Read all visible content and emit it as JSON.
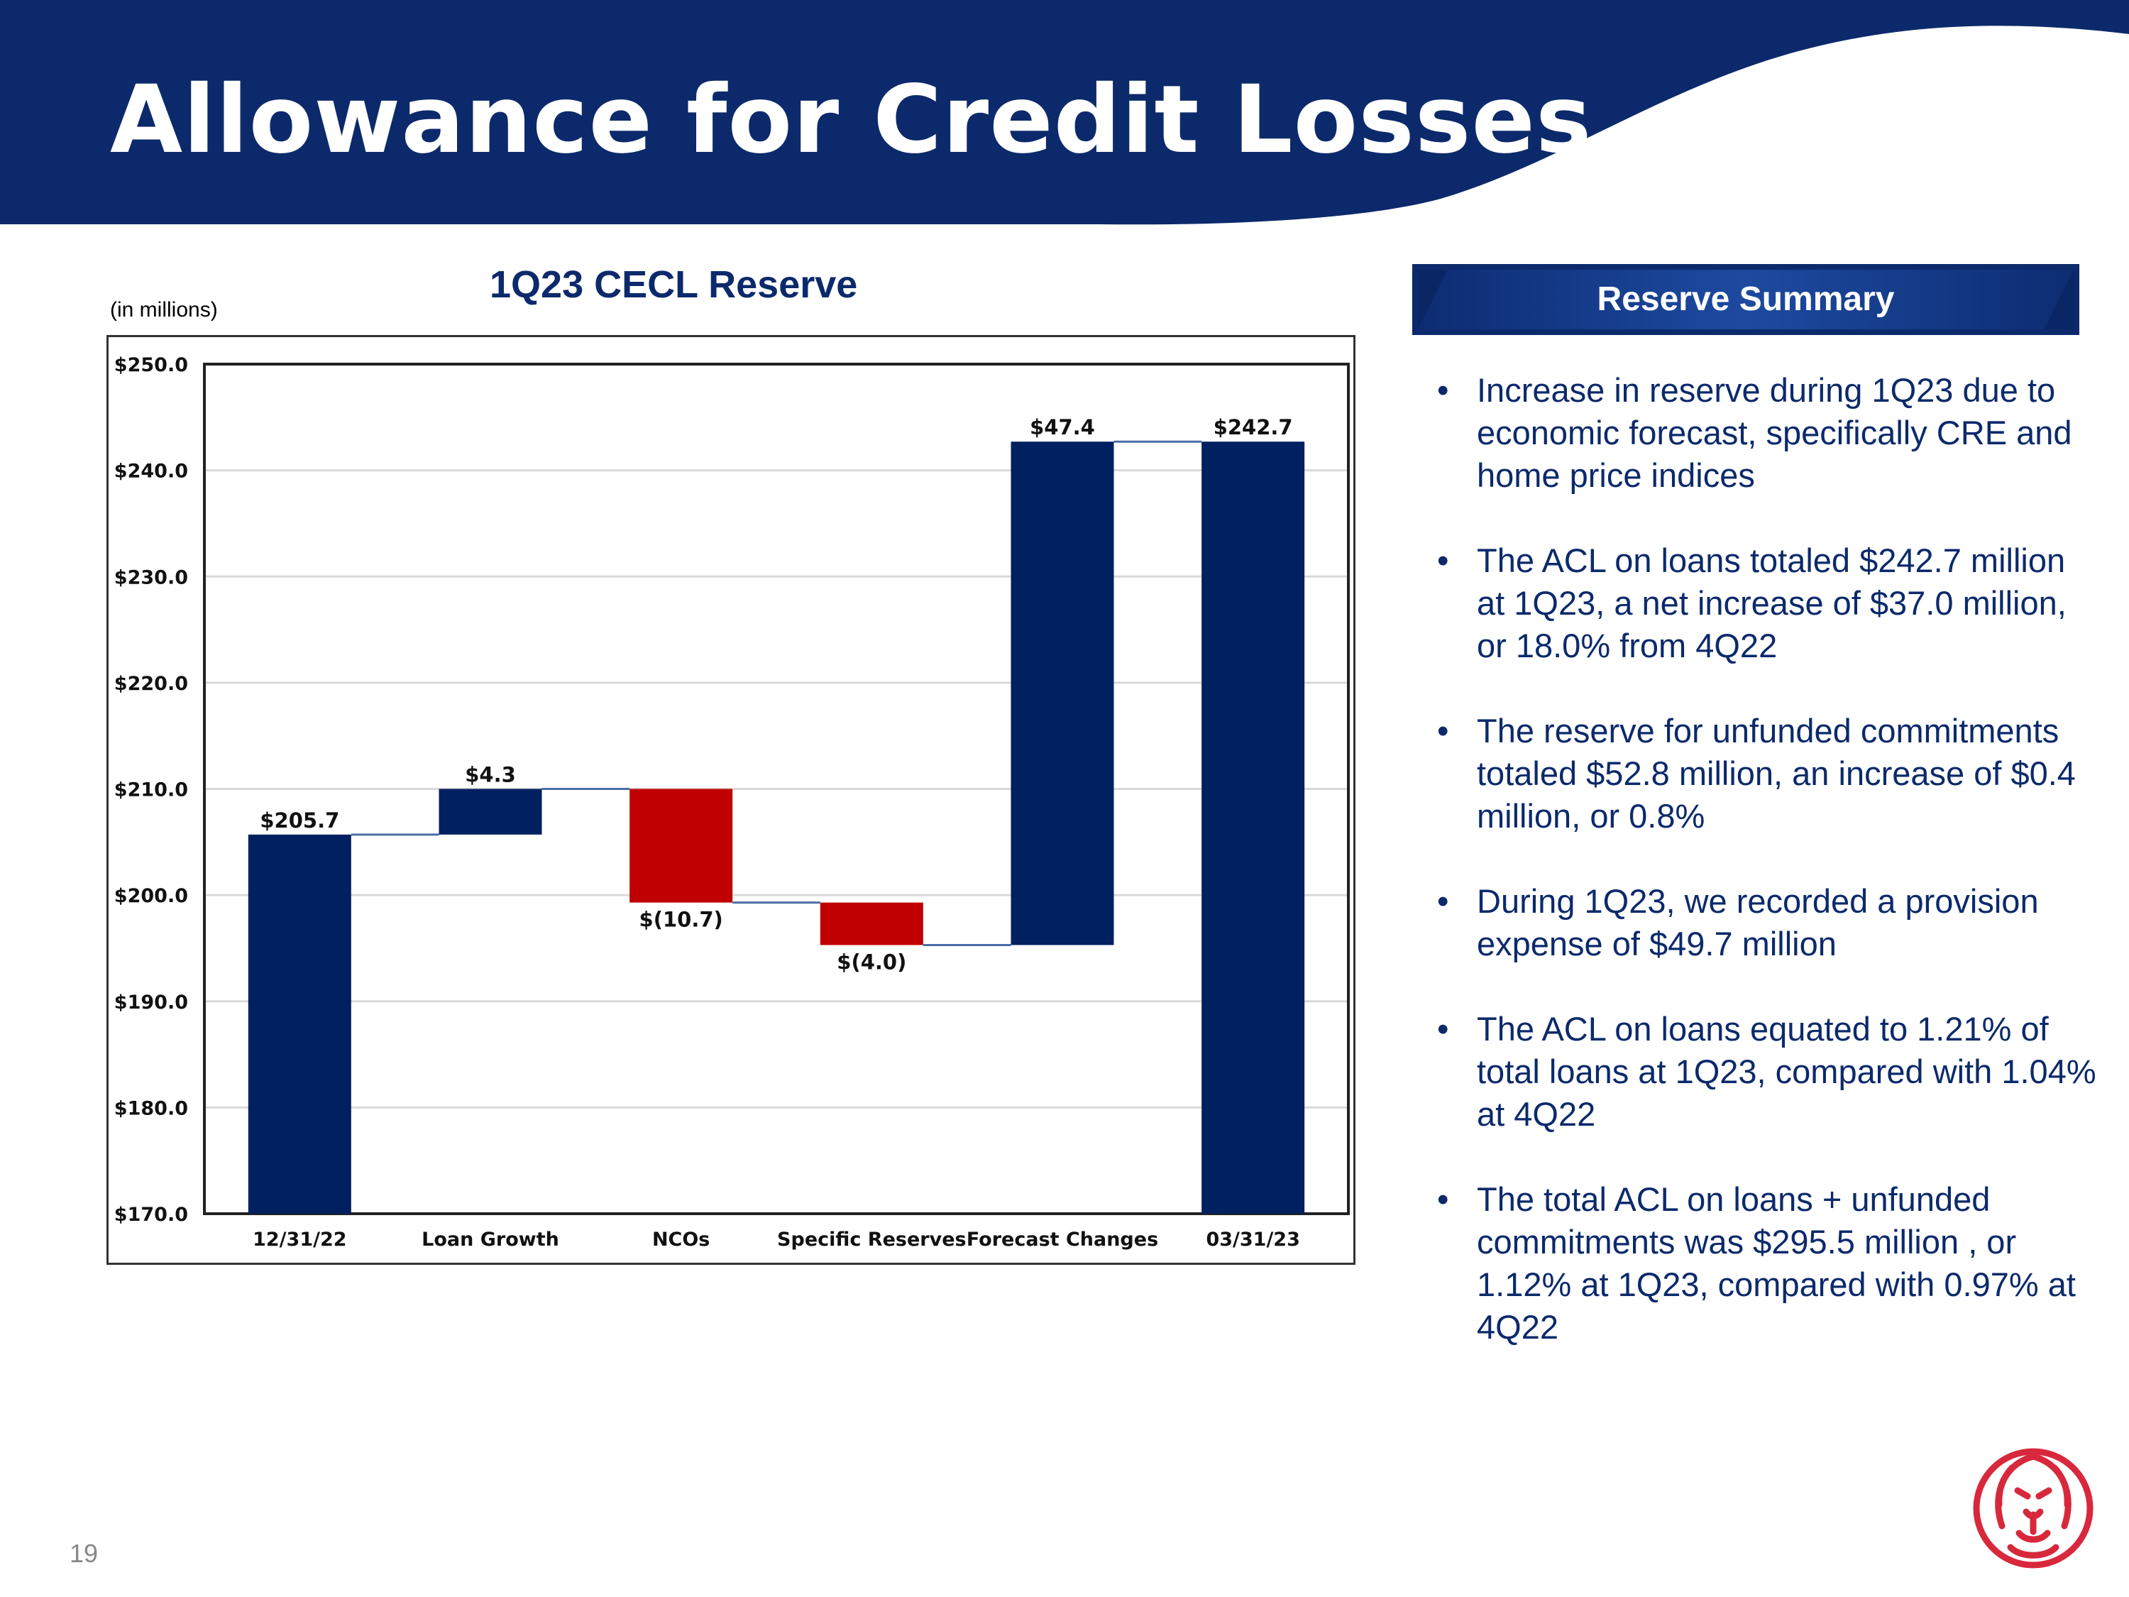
{
  "title": "Allowance for Credit Losses",
  "chart_heading": "1Q23 CECL Reserve",
  "units_note": "(in millions)",
  "summary": {
    "heading": "Reserve Summary",
    "bullets": [
      "Increase in reserve during 1Q23 due to economic forecast, specifically CRE and home price indices",
      "The ACL on loans totaled $242.7 million at 1Q23, a net increase of $37.0 million, or 18.0% from 4Q22",
      "The reserve for unfunded commitments totaled $52.8 million, an increase of $0.4 million, or 0.8%",
      "During 1Q23, we recorded a provision expense of $49.7 million",
      "The ACL on loans equated to 1.21% of total loans at 1Q23, compared with 1.04% at 4Q22",
      "The total ACL on loans + unfunded commitments was $295.5 million , or 1.12% at 1Q23, compared with 0.97% at 4Q22"
    ]
  },
  "page_number": "19",
  "colors": {
    "navy": "#0c2a6b",
    "bar_blue": "#002060",
    "bar_red": "#c00000",
    "logo_red": "#d8283c"
  },
  "chart_data": {
    "type": "bar",
    "subtype": "waterfall",
    "title": "1Q23 CECL Reserve",
    "ylabel": "(in millions)",
    "ylim": [
      170,
      250
    ],
    "yticks": [
      170,
      180,
      190,
      200,
      210,
      220,
      230,
      240,
      250
    ],
    "ytick_labels": [
      "$170.0",
      "$180.0",
      "$190.0",
      "$200.0",
      "$210.0",
      "$220.0",
      "$230.0",
      "$240.0",
      "$250.0"
    ],
    "grid": true,
    "categories": [
      "12/31/22",
      "Loan Growth",
      "NCOs",
      "Specific Reserves",
      "Forecast Changes",
      "03/31/23"
    ],
    "bars": [
      {
        "category": "12/31/22",
        "start": 170,
        "end": 205.7,
        "kind": "total",
        "label": "$205.7"
      },
      {
        "category": "Loan Growth",
        "start": 205.7,
        "end": 210.0,
        "kind": "increase",
        "label": "$4.3"
      },
      {
        "category": "NCOs",
        "start": 210.0,
        "end": 199.3,
        "kind": "decrease",
        "label": "$(10.7)"
      },
      {
        "category": "Specific Reserves",
        "start": 199.3,
        "end": 195.3,
        "kind": "decrease",
        "label": "$(4.0)"
      },
      {
        "category": "Forecast Changes",
        "start": 195.3,
        "end": 242.7,
        "kind": "increase",
        "label": "$47.4"
      },
      {
        "category": "03/31/23",
        "start": 170,
        "end": 242.7,
        "kind": "total",
        "label": "$242.7"
      }
    ]
  }
}
